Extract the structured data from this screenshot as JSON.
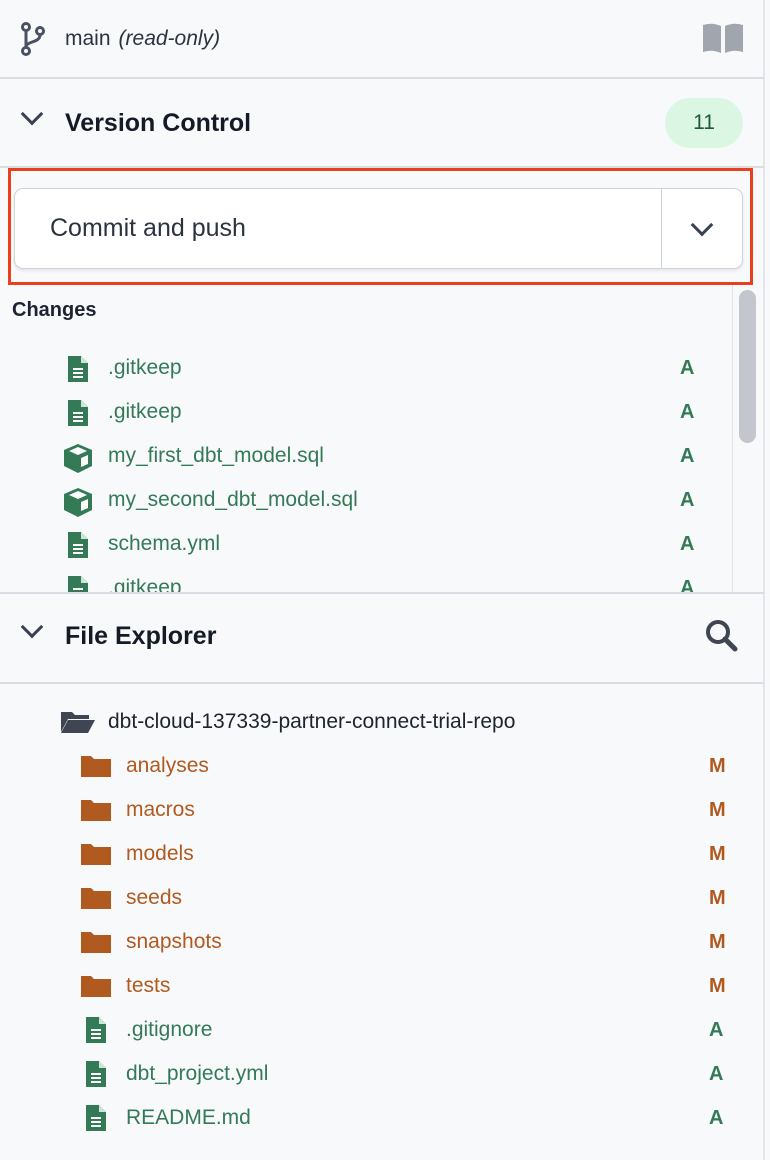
{
  "branch": {
    "name": "main",
    "mode": "(read-only)",
    "icon": "git-branch-icon",
    "docs_icon": "book-icon"
  },
  "version_control": {
    "title": "Version Control",
    "count": "11",
    "action": {
      "label": "Commit and push"
    },
    "changes_label": "Changes",
    "changes": [
      {
        "name": ".gitkeep",
        "icon": "file-icon",
        "status": "A"
      },
      {
        "name": ".gitkeep",
        "icon": "file-icon",
        "status": "A"
      },
      {
        "name": "my_first_dbt_model.sql",
        "icon": "model-cube-icon",
        "status": "A"
      },
      {
        "name": "my_second_dbt_model.sql",
        "icon": "model-cube-icon",
        "status": "A"
      },
      {
        "name": "schema.yml",
        "icon": "file-icon",
        "status": "A"
      },
      {
        "name": ".gitkeep",
        "icon": "file-icon",
        "status": "A"
      }
    ]
  },
  "file_explorer": {
    "title": "File Explorer",
    "root": "dbt-cloud-137339-partner-connect-trial-repo",
    "items": [
      {
        "name": "analyses",
        "type": "folder",
        "status": "M"
      },
      {
        "name": "macros",
        "type": "folder",
        "status": "M"
      },
      {
        "name": "models",
        "type": "folder",
        "status": "M"
      },
      {
        "name": "seeds",
        "type": "folder",
        "status": "M"
      },
      {
        "name": "snapshots",
        "type": "folder",
        "status": "M"
      },
      {
        "name": "tests",
        "type": "folder",
        "status": "M"
      },
      {
        "name": ".gitignore",
        "type": "file",
        "status": "A"
      },
      {
        "name": "dbt_project.yml",
        "type": "file",
        "status": "A"
      },
      {
        "name": "README.md",
        "type": "file",
        "status": "A"
      }
    ]
  },
  "colors": {
    "added": "#347a57",
    "modified": "#b15a1f",
    "highlight": "#e8401c",
    "badge_bg": "#dcf6e4"
  }
}
